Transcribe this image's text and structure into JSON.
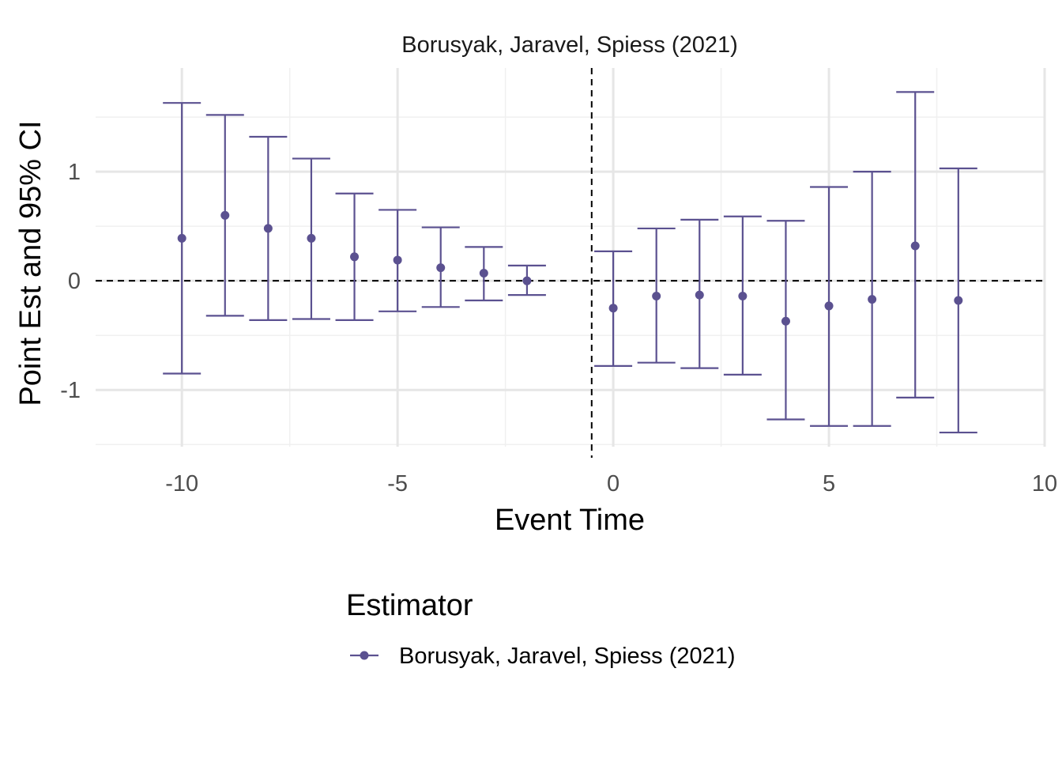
{
  "chart_data": {
    "type": "scatter",
    "title": "Borusyak, Jaravel, Spiess (2021)",
    "xlabel": "Event Time",
    "ylabel": "Point Est and 95% CI",
    "xlim": [
      -12,
      10
    ],
    "ylim": [
      -1.52,
      1.95
    ],
    "x_ticks": [
      -10,
      -5,
      0,
      5,
      10
    ],
    "x_tick_labels": [
      "-10",
      "-5",
      "0",
      "5",
      "10"
    ],
    "y_ticks": [
      -1,
      0,
      1
    ],
    "y_tick_labels": [
      "-1",
      "0",
      "1"
    ],
    "reference_lines": {
      "vertical_x": -0.5,
      "horizontal_y": 0
    },
    "grid": true,
    "legend_position": "bottom",
    "legend_title": "Estimator",
    "colors": {
      "series": "#5b5190",
      "major_grid": "#e6e6e6",
      "minor_grid": "#f0f0f0",
      "reference": "#000000"
    },
    "series": [
      {
        "name": "Borusyak, Jaravel, Spiess (2021)",
        "x": [
          -10,
          -9,
          -8,
          -7,
          -6,
          -5,
          -4,
          -3,
          -2,
          0,
          1,
          2,
          3,
          4,
          5,
          6,
          7,
          8
        ],
        "estimate": [
          0.39,
          0.6,
          0.48,
          0.39,
          0.22,
          0.19,
          0.12,
          0.07,
          0.0,
          -0.25,
          -0.14,
          -0.13,
          -0.14,
          -0.37,
          -0.23,
          -0.17,
          0.32,
          -0.18
        ],
        "ci_low": [
          -0.85,
          -0.32,
          -0.36,
          -0.35,
          -0.36,
          -0.28,
          -0.24,
          -0.18,
          -0.13,
          -0.78,
          -0.75,
          -0.8,
          -0.86,
          -1.27,
          -1.33,
          -1.33,
          -1.07,
          -1.39
        ],
        "ci_high": [
          1.63,
          1.52,
          1.32,
          1.12,
          0.8,
          0.65,
          0.49,
          0.31,
          0.14,
          0.27,
          0.48,
          0.56,
          0.59,
          0.55,
          0.86,
          1.0,
          1.73,
          1.03
        ]
      }
    ]
  }
}
